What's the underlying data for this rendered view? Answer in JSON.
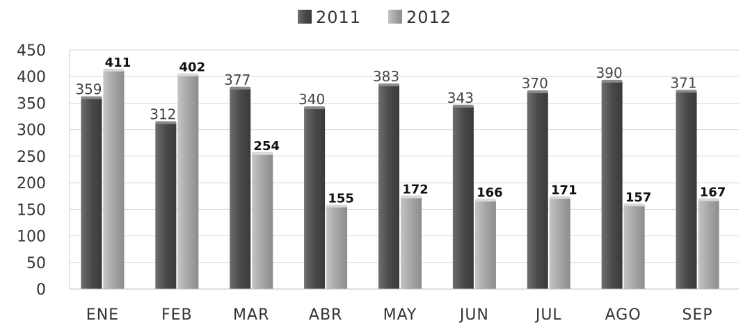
{
  "chart_data": {
    "type": "bar",
    "categories": [
      "ENE",
      "FEB",
      "MAR",
      "ABR",
      "MAY",
      "JUN",
      "JUL",
      "AGO",
      "SEP"
    ],
    "series": [
      {
        "name": "2011",
        "color": "#555555",
        "values": [
          359,
          312,
          377,
          340,
          383,
          343,
          370,
          390,
          371
        ]
      },
      {
        "name": "2012",
        "color": "#a8a8a8",
        "values": [
          411,
          402,
          254,
          155,
          172,
          166,
          171,
          157,
          167
        ]
      }
    ],
    "title": "",
    "xlabel": "",
    "ylabel": "",
    "ylim": [
      0,
      450
    ],
    "yticks": [
      0,
      50,
      100,
      150,
      200,
      250,
      300,
      350,
      400,
      450
    ],
    "grid": true,
    "legend_position": "top-center"
  }
}
